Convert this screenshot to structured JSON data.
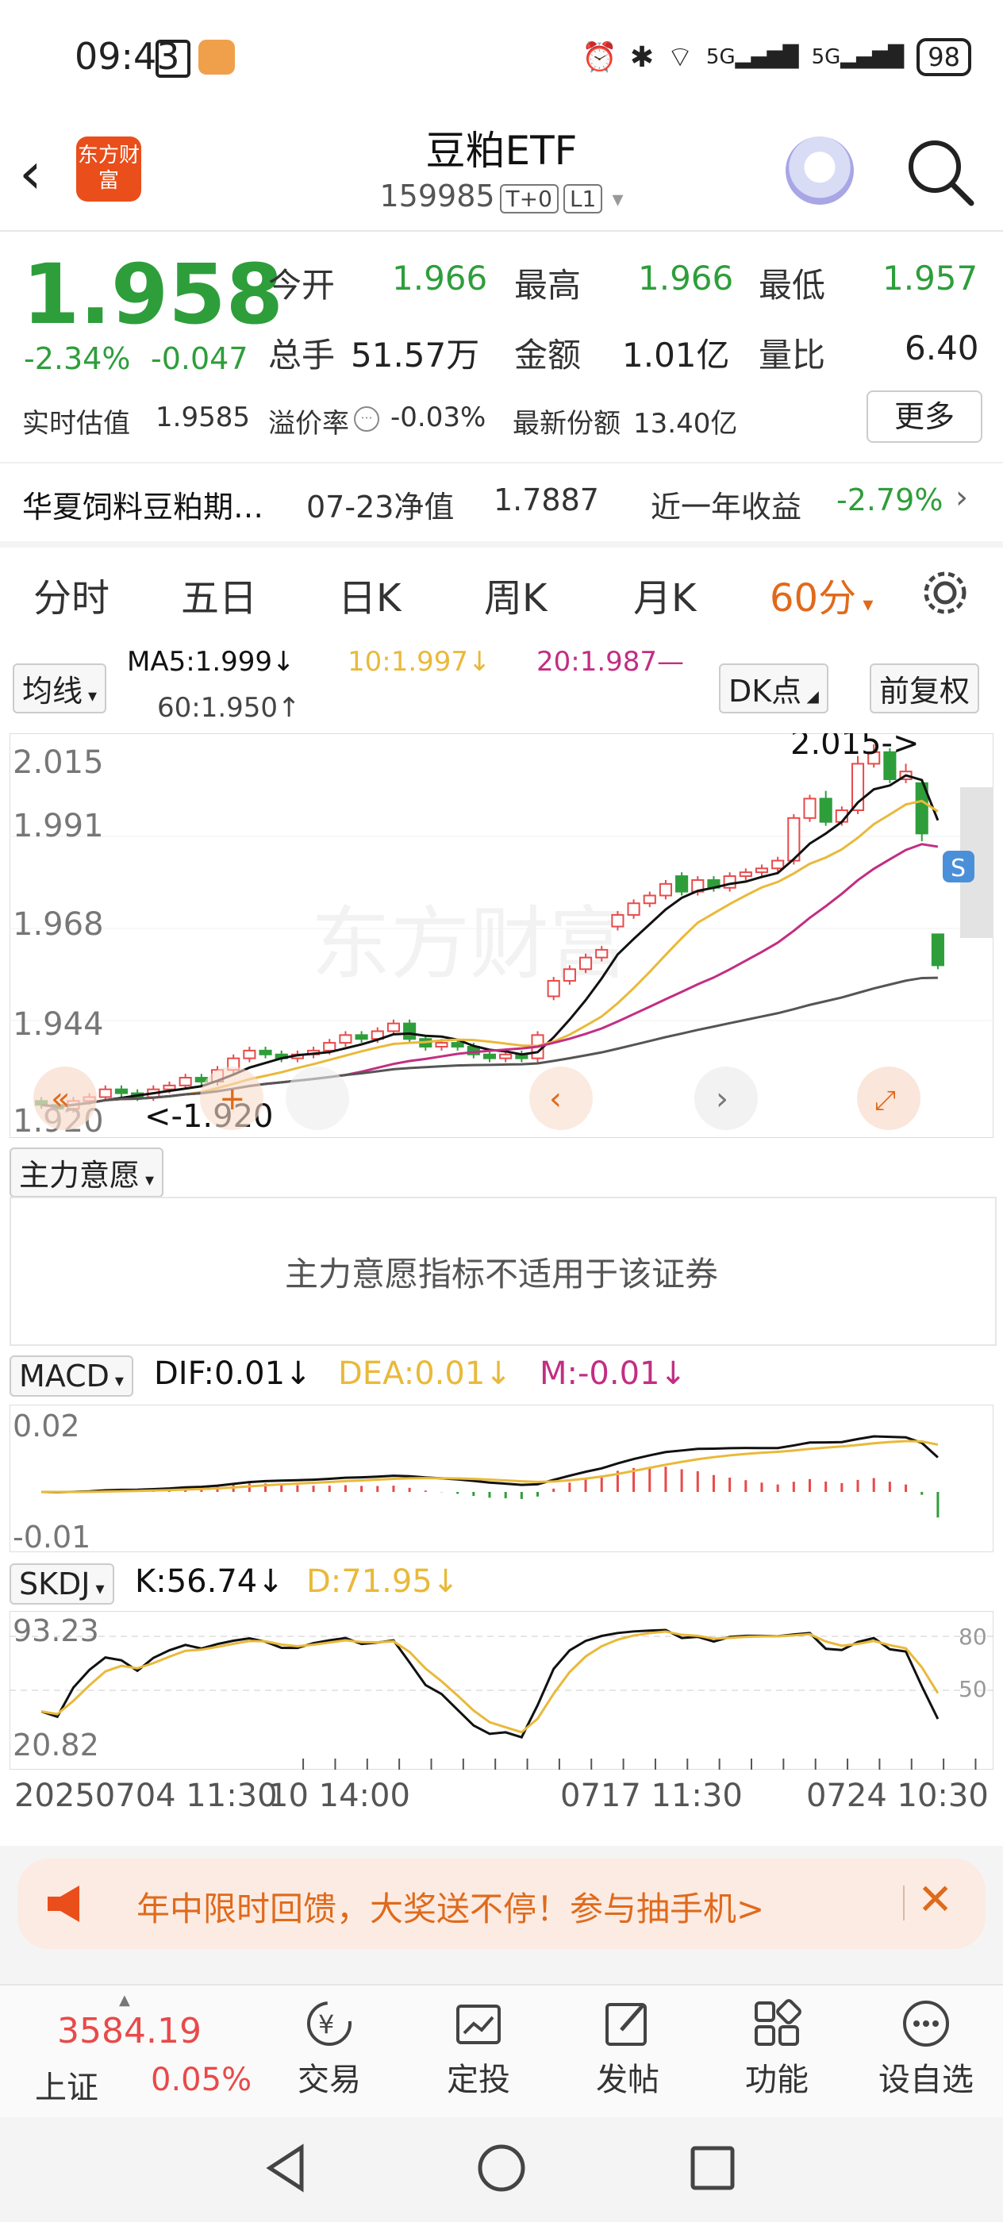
{
  "status_bar": {
    "time": "09:43",
    "battery": "98",
    "net1": "5G",
    "net2": "5G"
  },
  "header": {
    "logo_text": "东方财富",
    "title": "豆粕ETF",
    "code": "159985",
    "tag1": "T+0",
    "tag2": "L1"
  },
  "quote": {
    "price": "1.958",
    "change_pct": "-2.34%",
    "change": "-0.047",
    "open_label": "今开",
    "open": "1.966",
    "high_label": "最高",
    "high": "1.966",
    "low_label": "最低",
    "low": "1.957",
    "volume_label": "总手",
    "volume": "51.57万",
    "amount_label": "金额",
    "amount": "1.01亿",
    "ratio_label": "量比",
    "ratio": "6.40",
    "est_label": "实时估值",
    "est": "1.9585",
    "premium_label": "溢价率",
    "premium": "-0.03%",
    "shares_label": "最新份额",
    "shares": "13.40亿",
    "more": "更多",
    "fund_name": "华夏饲料豆粕期…",
    "nav_date": "07-23净值",
    "nav": "1.7887",
    "year_label": "近一年收益",
    "year_return": "-2.79%"
  },
  "tabs": [
    "分时",
    "五日",
    "日K",
    "周K",
    "月K",
    "60分"
  ],
  "ma": {
    "toggle": "均线",
    "ma5": "MA5:1.999↓",
    "ma10": "10:1.997↓",
    "ma20": "20:1.987—",
    "ma60": "60:1.950↑",
    "dk": "DK点",
    "adjust": "前复权"
  },
  "kline": {
    "y_ticks": [
      "2.015",
      "1.991",
      "1.968",
      "1.944",
      "1.920"
    ],
    "high_marker": "2.015->",
    "low_marker": "<-1.920",
    "watermark": "东方财富",
    "s_badge": "S"
  },
  "indicator": {
    "name": "主力意愿",
    "message": "主力意愿指标不适用于该证券"
  },
  "macd": {
    "name": "MACD",
    "dif": "DIF:0.01↓",
    "dea": "DEA:0.01↓",
    "m": "M:-0.01↓",
    "y_top": "0.02",
    "y_bottom": "-0.01"
  },
  "skdj": {
    "name": "SKDJ",
    "k": "K:56.74↓",
    "d": "D:71.95↓",
    "y_top": "93.23",
    "y_bottom": "20.82",
    "r80": "80",
    "r50": "50"
  },
  "x_axis": {
    "t1": "20250704 11:30",
    "t2": "10 14:00",
    "t3": "0717 11:30",
    "t4": "0724 10:30"
  },
  "promo": {
    "text": "年中限时回馈，大奖送不停！参与抽手机>"
  },
  "bottom_nav": {
    "index_value": "3584.19",
    "index_name": "上证",
    "index_pct": "0.05%",
    "trade": "交易",
    "invest": "定投",
    "post": "发帖",
    "func": "功能",
    "watch": "设自选"
  },
  "colors": {
    "up": "#e84a4a",
    "down": "#2e9e3b",
    "accent": "#e06a1b",
    "ma5": "#111111",
    "ma10": "#e9b93a",
    "ma20": "#c22e83",
    "ma60": "#555555"
  },
  "chart_data": {
    "type": "candlestick",
    "ylim": [
      1.92,
      2.015
    ],
    "candles": [
      [
        1.923,
        1.922,
        1.924,
        1.921
      ],
      [
        1.922,
        1.921,
        1.923,
        1.92
      ],
      [
        1.921,
        1.923,
        1.924,
        1.92
      ],
      [
        1.923,
        1.924,
        1.925,
        1.922
      ],
      [
        1.924,
        1.926,
        1.927,
        1.923
      ],
      [
        1.926,
        1.925,
        1.927,
        1.924
      ],
      [
        1.925,
        1.924,
        1.926,
        1.923
      ],
      [
        1.924,
        1.926,
        1.927,
        1.923
      ],
      [
        1.926,
        1.927,
        1.928,
        1.925
      ],
      [
        1.927,
        1.929,
        1.93,
        1.926
      ],
      [
        1.929,
        1.928,
        1.93,
        1.927
      ],
      [
        1.928,
        1.931,
        1.932,
        1.927
      ],
      [
        1.931,
        1.934,
        1.935,
        1.93
      ],
      [
        1.934,
        1.936,
        1.937,
        1.933
      ],
      [
        1.936,
        1.935,
        1.937,
        1.934
      ],
      [
        1.935,
        1.934,
        1.936,
        1.933
      ],
      [
        1.934,
        1.935,
        1.936,
        1.933
      ],
      [
        1.935,
        1.936,
        1.937,
        1.934
      ],
      [
        1.936,
        1.938,
        1.939,
        1.935
      ],
      [
        1.938,
        1.94,
        1.941,
        1.937
      ],
      [
        1.94,
        1.939,
        1.941,
        1.938
      ],
      [
        1.939,
        1.941,
        1.942,
        1.938
      ],
      [
        1.941,
        1.943,
        1.944,
        1.94
      ],
      [
        1.943,
        1.939,
        1.944,
        1.938
      ],
      [
        1.939,
        1.937,
        1.94,
        1.936
      ],
      [
        1.937,
        1.938,
        1.939,
        1.936
      ],
      [
        1.938,
        1.937,
        1.939,
        1.936
      ],
      [
        1.937,
        1.935,
        1.938,
        1.934
      ],
      [
        1.935,
        1.934,
        1.936,
        1.933
      ],
      [
        1.934,
        1.935,
        1.936,
        1.933
      ],
      [
        1.935,
        1.934,
        1.936,
        1.933
      ],
      [
        1.934,
        1.94,
        1.941,
        1.933
      ],
      [
        1.95,
        1.954,
        1.955,
        1.949
      ],
      [
        1.954,
        1.957,
        1.958,
        1.953
      ],
      [
        1.957,
        1.96,
        1.961,
        1.956
      ],
      [
        1.96,
        1.962,
        1.963,
        1.959
      ],
      [
        1.968,
        1.971,
        1.972,
        1.967
      ],
      [
        1.971,
        1.974,
        1.975,
        1.97
      ],
      [
        1.974,
        1.976,
        1.977,
        1.973
      ],
      [
        1.976,
        1.979,
        1.98,
        1.975
      ],
      [
        1.981,
        1.977,
        1.982,
        1.976
      ],
      [
        1.977,
        1.98,
        1.981,
        1.976
      ],
      [
        1.98,
        1.978,
        1.981,
        1.977
      ],
      [
        1.978,
        1.981,
        1.982,
        1.977
      ],
      [
        1.981,
        1.982,
        1.983,
        1.98
      ],
      [
        1.982,
        1.983,
        1.984,
        1.981
      ],
      [
        1.983,
        1.985,
        1.986,
        1.982
      ],
      [
        1.985,
        1.996,
        1.997,
        1.984
      ],
      [
        1.996,
        2.001,
        2.002,
        1.995
      ],
      [
        2.001,
        1.995,
        2.003,
        1.994
      ],
      [
        1.995,
        1.998,
        1.999,
        1.994
      ],
      [
        1.998,
        2.01,
        2.012,
        1.997
      ],
      [
        2.01,
        2.013,
        2.015,
        2.009
      ],
      [
        2.013,
        2.006,
        2.014,
        2.005
      ],
      [
        2.006,
        2.008,
        2.01,
        2.005
      ],
      [
        2.005,
        1.992,
        2.006,
        1.99
      ],
      [
        1.966,
        1.958,
        1.966,
        1.957
      ]
    ]
  }
}
